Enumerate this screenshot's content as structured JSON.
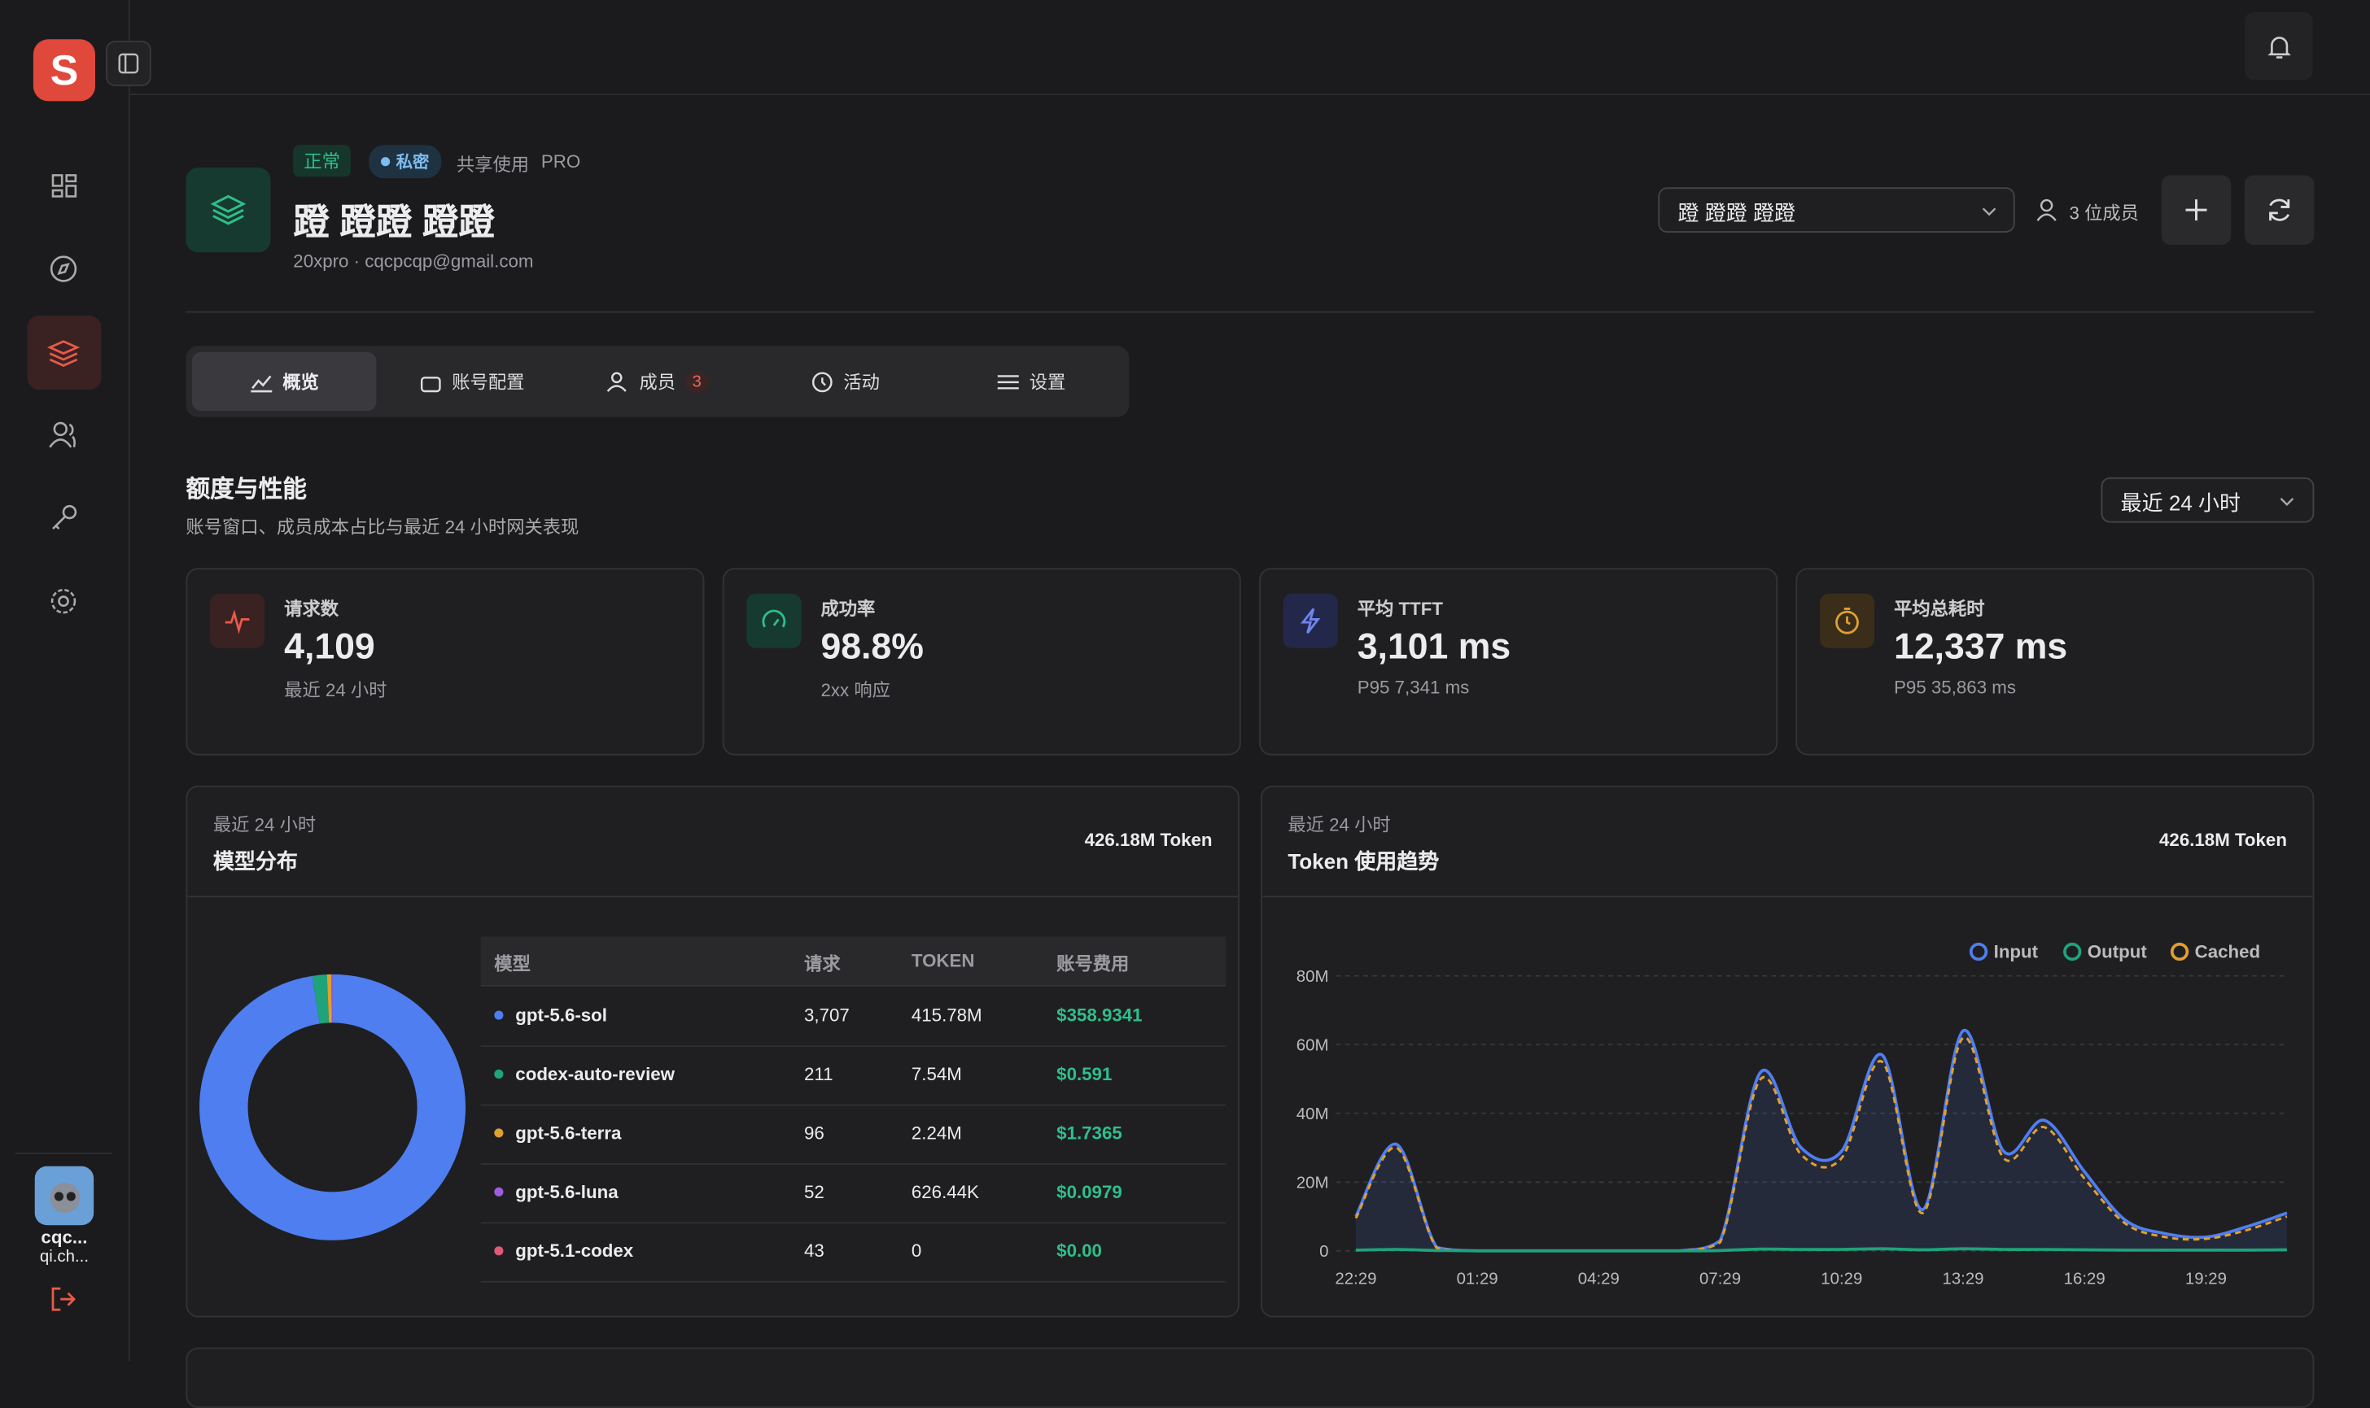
{
  "app": {
    "logo": "S",
    "user_name": "cqc...",
    "user_email": "qi.ch..."
  },
  "header": {
    "status": "正常",
    "visibility": "私密",
    "sharing": "共享使用",
    "plan": "PRO",
    "title": "蹬 蹬蹬 蹬蹬",
    "subtitle": "20xpro · cqcpcqp@gmail.com",
    "selector": "蹬 蹬蹬 蹬蹬",
    "members": "3 位成员"
  },
  "tabs": [
    {
      "label": "概览"
    },
    {
      "label": "账号配置"
    },
    {
      "label": "成员",
      "badge": 3
    },
    {
      "label": "活动"
    },
    {
      "label": "设置"
    }
  ],
  "section": {
    "title": "额度与性能",
    "subtitle": "账号窗口、成员成本占比与最近 24 小时网关表现",
    "range": "最近 24 小时"
  },
  "stats": [
    {
      "label": "请求数",
      "value": "4,109",
      "note": "最近 24 小时"
    },
    {
      "label": "成功率",
      "value": "98.8%",
      "note": "2xx 响应"
    },
    {
      "label": "平均 TTFT",
      "value": "3,101 ms",
      "note": "P95 7,341 ms"
    },
    {
      "label": "平均总耗时",
      "value": "12,337 ms",
      "note": "P95 35,863 ms"
    }
  ],
  "model_panel": {
    "caption": "最近 24 小时",
    "title": "模型分布",
    "total": "426.18M Token",
    "columns": [
      "模型",
      "请求",
      "TOKEN",
      "账号费用"
    ],
    "rows": [
      {
        "requests": "3,707",
        "cost": "$358.9341"
      },
      {
        "requests": "211",
        "cost": "$0.591"
      },
      {
        "requests": "96",
        "cost": "$1.7365"
      },
      {
        "requests": "52",
        "cost": "$0.0979"
      },
      {
        "requests": "43",
        "cost": "$0.00"
      }
    ]
  },
  "trend_panel": {
    "caption": "最近 24 小时",
    "title": "Token 使用趋势",
    "total": "426.18M Token"
  },
  "chart_data": [
    {
      "type": "pie",
      "categories": [
        "gpt-5.6-sol",
        "codex-auto-review",
        "gpt-5.6-terra",
        "gpt-5.6-luna",
        "gpt-5.1-codex"
      ],
      "values": [
        415.78,
        7.54,
        2.24,
        0.62644,
        0
      ],
      "value_labels": [
        "415.78M",
        "7.54M",
        "2.24M",
        "626.44K",
        "0"
      ],
      "colors": [
        "#4f7ef0",
        "#1fa37a",
        "#e0a030",
        "#a05ce0",
        "#e05a78"
      ],
      "donut": true
    },
    {
      "type": "line",
      "categories": [
        "22:29",
        null,
        null,
        "01:29",
        null,
        null,
        "04:29",
        null,
        null,
        "07:29",
        null,
        null,
        "10:29",
        null,
        null,
        "13:29",
        null,
        null,
        "16:29",
        null,
        null,
        "19:29",
        null,
        null
      ],
      "series": [
        {
          "name": "Input",
          "color": "#4f7ef0",
          "values": [
            10,
            31,
            1,
            0,
            0,
            0,
            0,
            0,
            0,
            3,
            52,
            30,
            29,
            57,
            12,
            64,
            29,
            38,
            23,
            9,
            5,
            4,
            7,
            11
          ]
        },
        {
          "name": "Output",
          "color": "#1fa37a",
          "values": [
            0.2,
            0.4,
            0.1,
            0,
            0,
            0,
            0,
            0,
            0,
            0.1,
            0.5,
            0.4,
            0.4,
            0.6,
            0.3,
            0.6,
            0.4,
            0.4,
            0.3,
            0.2,
            0.2,
            0.2,
            0.2,
            0.3
          ]
        },
        {
          "name": "Cached",
          "color": "#e0a030",
          "values": [
            9.5,
            30,
            0.8,
            0,
            0,
            0,
            0,
            0,
            0,
            2.5,
            50,
            28,
            27,
            55,
            11,
            62,
            27,
            36,
            21,
            8,
            4,
            3.5,
            6,
            10
          ]
        }
      ],
      "ylim": [
        0,
        80
      ],
      "yticks": [
        0,
        {
          "value": 20,
          "label": "20M"
        },
        {
          "value": 40,
          "label": "40M"
        },
        {
          "value": 60,
          "label": "60M"
        },
        {
          "value": 80,
          "label": "80M"
        }
      ],
      "grid": true,
      "legend": "top-right"
    }
  ]
}
